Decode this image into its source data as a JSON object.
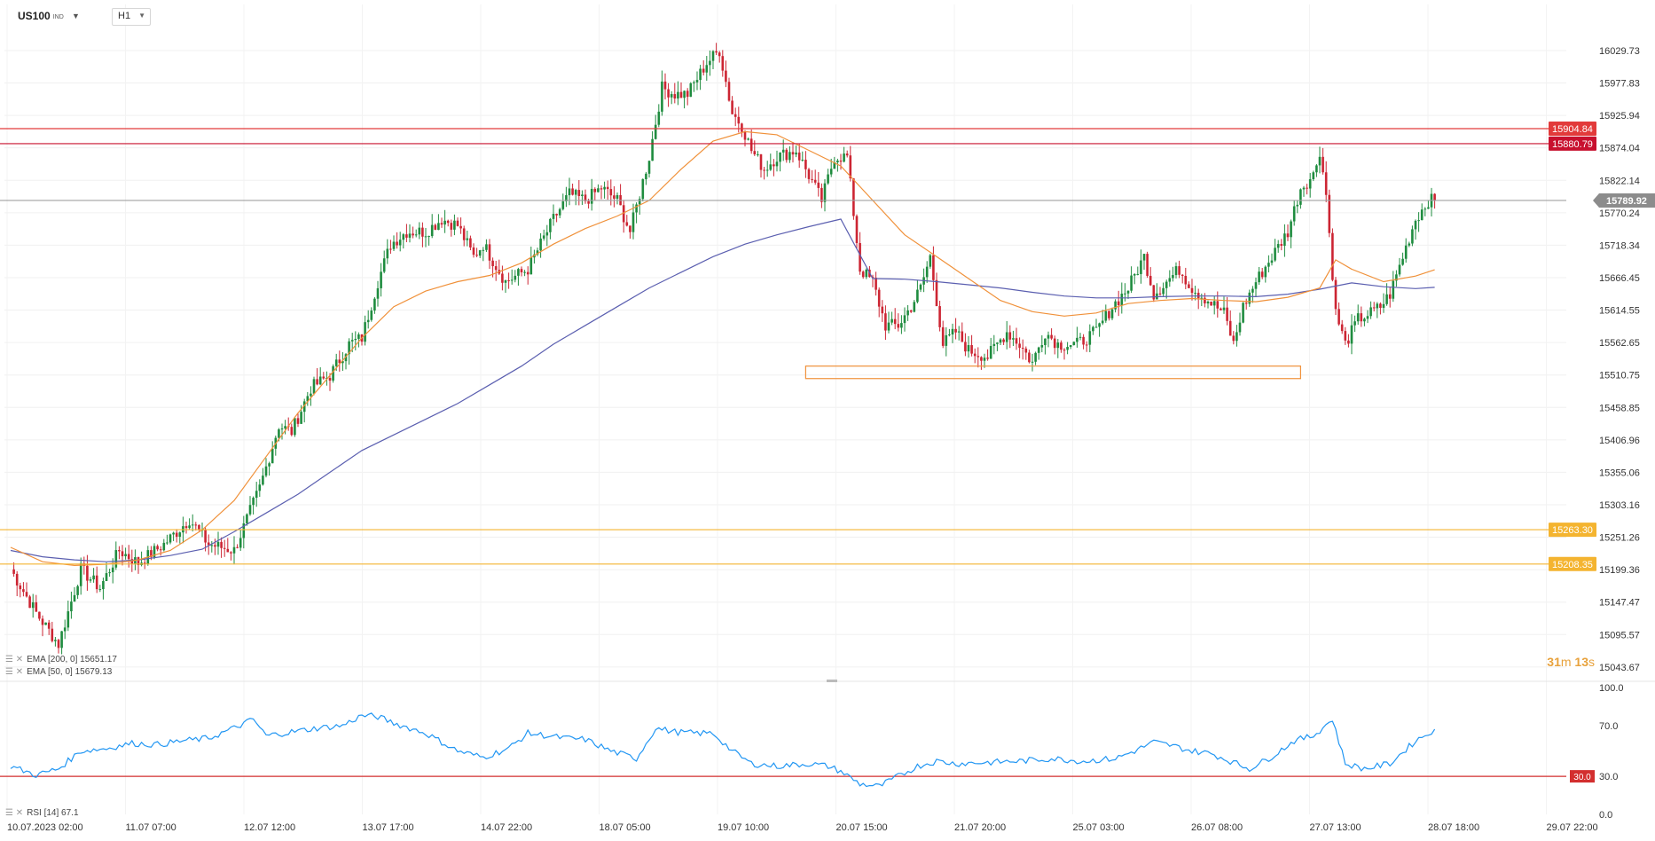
{
  "header": {
    "symbol": "US100",
    "symbol_sub": "IND",
    "timeframe": "H1"
  },
  "indicators": {
    "ema200": {
      "label": "EMA [200, 0]",
      "value": "15651.17",
      "color": "#5b5fb0"
    },
    "ema50": {
      "label": "EMA [50, 0]",
      "value": "15679.13",
      "color": "#f0913a"
    },
    "rsi": {
      "label": "RSI [14]",
      "value": "67.1",
      "color": "#2196f3"
    }
  },
  "countdown": {
    "minutes": "31",
    "m": "m",
    "seconds": "13",
    "s": "s"
  },
  "chart_data": {
    "type": "candlestick",
    "symbol": "US100",
    "timeframe": "H1",
    "y_range": [
      15025,
      16068
    ],
    "y_ticks": [
      "16029.73",
      "15977.83",
      "15925.94",
      "15874.04",
      "15822.14",
      "15770.24",
      "15718.34",
      "15666.45",
      "15614.55",
      "15562.65",
      "15510.75",
      "15458.85",
      "15406.96",
      "15355.06",
      "15303.16",
      "15251.26",
      "15199.36",
      "15147.47",
      "15095.57",
      "15043.67"
    ],
    "x_labels": [
      "10.07.2023  02:00",
      "11.07  07:00",
      "12.07  12:00",
      "13.07  17:00",
      "14.07  22:00",
      "18.07  05:00",
      "19.07  10:00",
      "20.07  15:00",
      "21.07  20:00",
      "25.07  03:00",
      "26.07  08:00",
      "27.07  13:00",
      "28.07  18:00",
      "29.07  22:00"
    ],
    "current_price": {
      "value": 15789.92,
      "label": "15789.92",
      "color": "#8c8c8c"
    },
    "horizontal_lines": [
      {
        "value": 15904.84,
        "label": "15904.84",
        "color": "#e23a3a"
      },
      {
        "value": 15880.79,
        "label": "15880.79",
        "color": "#c8102e"
      },
      {
        "value": 15263.3,
        "label": "15263.30",
        "color": "#f4b430"
      },
      {
        "value": 15208.35,
        "label": "15208.35",
        "color": "#f4b430"
      }
    ],
    "support_zone": {
      "start_label": "21.07",
      "end_label": "28.07",
      "top": 15525,
      "bottom": 15505,
      "color": "#f0913a"
    },
    "ohlc_path": [
      [
        0,
        15200
      ],
      [
        8,
        15130
      ],
      [
        15,
        15080
      ],
      [
        22,
        15200
      ],
      [
        28,
        15170
      ],
      [
        34,
        15230
      ],
      [
        40,
        15210
      ],
      [
        48,
        15240
      ],
      [
        56,
        15280
      ],
      [
        62,
        15240
      ],
      [
        70,
        15230
      ],
      [
        78,
        15330
      ],
      [
        84,
        15430
      ],
      [
        88,
        15420
      ],
      [
        94,
        15490
      ],
      [
        100,
        15510
      ],
      [
        106,
        15560
      ],
      [
        110,
        15570
      ],
      [
        115,
        15660
      ],
      [
        119,
        15720
      ],
      [
        124,
        15740
      ],
      [
        130,
        15740
      ],
      [
        135,
        15760
      ],
      [
        140,
        15750
      ],
      [
        145,
        15700
      ],
      [
        148,
        15720
      ],
      [
        155,
        15660
      ],
      [
        162,
        15680
      ],
      [
        166,
        15720
      ],
      [
        170,
        15760
      ],
      [
        175,
        15800
      ],
      [
        180,
        15790
      ],
      [
        185,
        15810
      ],
      [
        190,
        15790
      ],
      [
        194,
        15740
      ],
      [
        200,
        15860
      ],
      [
        204,
        15970
      ],
      [
        208,
        15960
      ],
      [
        212,
        15960
      ],
      [
        218,
        16010
      ],
      [
        222,
        16030
      ],
      [
        226,
        15930
      ],
      [
        229,
        15910
      ],
      [
        232,
        15870
      ],
      [
        236,
        15840
      ],
      [
        240,
        15860
      ],
      [
        246,
        15870
      ],
      [
        250,
        15830
      ],
      [
        254,
        15790
      ],
      [
        258,
        15860
      ],
      [
        262,
        15860
      ],
      [
        266,
        15680
      ],
      [
        270,
        15660
      ],
      [
        274,
        15590
      ],
      [
        278,
        15590
      ],
      [
        282,
        15620
      ],
      [
        285,
        15650
      ],
      [
        288,
        15700
      ],
      [
        292,
        15560
      ],
      [
        296,
        15580
      ],
      [
        300,
        15550
      ],
      [
        306,
        15540
      ],
      [
        312,
        15580
      ],
      [
        316,
        15560
      ],
      [
        320,
        15530
      ],
      [
        324,
        15580
      ],
      [
        328,
        15560
      ],
      [
        334,
        15560
      ],
      [
        340,
        15580
      ],
      [
        345,
        15620
      ],
      [
        350,
        15650
      ],
      [
        355,
        15700
      ],
      [
        358,
        15640
      ],
      [
        362,
        15660
      ],
      [
        366,
        15680
      ],
      [
        370,
        15650
      ],
      [
        375,
        15630
      ],
      [
        380,
        15610
      ],
      [
        383,
        15560
      ],
      [
        386,
        15620
      ],
      [
        390,
        15660
      ],
      [
        395,
        15700
      ],
      [
        400,
        15740
      ],
      [
        404,
        15810
      ],
      [
        408,
        15830
      ],
      [
        410,
        15870
      ],
      [
        412,
        15800
      ],
      [
        415,
        15610
      ],
      [
        418,
        15560
      ],
      [
        422,
        15600
      ],
      [
        426,
        15610
      ],
      [
        429,
        15620
      ],
      [
        432,
        15640
      ],
      [
        436,
        15700
      ],
      [
        440,
        15760
      ],
      [
        444,
        15789.92
      ]
    ],
    "ema50_path": [
      [
        0,
        15235
      ],
      [
        10,
        15212
      ],
      [
        20,
        15206
      ],
      [
        30,
        15208
      ],
      [
        40,
        15215
      ],
      [
        50,
        15230
      ],
      [
        60,
        15263
      ],
      [
        70,
        15310
      ],
      [
        80,
        15380
      ],
      [
        90,
        15450
      ],
      [
        100,
        15510
      ],
      [
        110,
        15570
      ],
      [
        120,
        15620
      ],
      [
        130,
        15645
      ],
      [
        140,
        15660
      ],
      [
        150,
        15670
      ],
      [
        160,
        15690
      ],
      [
        170,
        15720
      ],
      [
        180,
        15745
      ],
      [
        190,
        15765
      ],
      [
        200,
        15790
      ],
      [
        210,
        15840
      ],
      [
        220,
        15885
      ],
      [
        230,
        15900
      ],
      [
        240,
        15895
      ],
      [
        250,
        15870
      ],
      [
        260,
        15845
      ],
      [
        270,
        15790
      ],
      [
        280,
        15735
      ],
      [
        290,
        15700
      ],
      [
        300,
        15665
      ],
      [
        310,
        15630
      ],
      [
        320,
        15612
      ],
      [
        330,
        15605
      ],
      [
        340,
        15610
      ],
      [
        350,
        15625
      ],
      [
        360,
        15630
      ],
      [
        370,
        15633
      ],
      [
        380,
        15630
      ],
      [
        390,
        15628
      ],
      [
        400,
        15635
      ],
      [
        410,
        15650
      ],
      [
        415,
        15695
      ],
      [
        420,
        15680
      ],
      [
        430,
        15660
      ],
      [
        440,
        15669
      ],
      [
        446,
        15679
      ]
    ],
    "ema200_path": [
      [
        0,
        15230
      ],
      [
        10,
        15220
      ],
      [
        20,
        15215
      ],
      [
        30,
        15212
      ],
      [
        40,
        15215
      ],
      [
        50,
        15222
      ],
      [
        60,
        15232
      ],
      [
        70,
        15260
      ],
      [
        80,
        15290
      ],
      [
        90,
        15320
      ],
      [
        100,
        15355
      ],
      [
        110,
        15390
      ],
      [
        120,
        15415
      ],
      [
        130,
        15440
      ],
      [
        140,
        15465
      ],
      [
        150,
        15495
      ],
      [
        160,
        15525
      ],
      [
        170,
        15560
      ],
      [
        180,
        15590
      ],
      [
        190,
        15620
      ],
      [
        200,
        15650
      ],
      [
        210,
        15675
      ],
      [
        220,
        15700
      ],
      [
        230,
        15720
      ],
      [
        240,
        15735
      ],
      [
        250,
        15748
      ],
      [
        260,
        15760
      ],
      [
        270,
        15665
      ],
      [
        280,
        15664
      ],
      [
        290,
        15660
      ],
      [
        300,
        15655
      ],
      [
        310,
        15650
      ],
      [
        320,
        15643
      ],
      [
        330,
        15637
      ],
      [
        340,
        15634
      ],
      [
        350,
        15634
      ],
      [
        360,
        15636
      ],
      [
        370,
        15637
      ],
      [
        380,
        15637
      ],
      [
        390,
        15636
      ],
      [
        400,
        15640
      ],
      [
        410,
        15648
      ],
      [
        420,
        15658
      ],
      [
        430,
        15652
      ],
      [
        440,
        15649
      ],
      [
        446,
        15651
      ]
    ],
    "rsi": {
      "y_range": [
        0,
        100
      ],
      "y_ticks": [
        "100.0",
        "70.0",
        "30.0",
        "0.0"
      ],
      "level": {
        "value": 30.0,
        "label": "30.0",
        "color": "#d32f2f"
      },
      "values": [
        [
          0,
          38
        ],
        [
          8,
          31
        ],
        [
          15,
          36
        ],
        [
          22,
          50
        ],
        [
          30,
          52
        ],
        [
          38,
          56
        ],
        [
          46,
          55
        ],
        [
          54,
          58
        ],
        [
          62,
          60
        ],
        [
          70,
          68
        ],
        [
          76,
          75
        ],
        [
          80,
          62
        ],
        [
          88,
          65
        ],
        [
          96,
          68
        ],
        [
          104,
          70
        ],
        [
          110,
          78
        ],
        [
          115,
          77
        ],
        [
          120,
          72
        ],
        [
          130,
          64
        ],
        [
          140,
          50
        ],
        [
          148,
          45
        ],
        [
          156,
          52
        ],
        [
          162,
          64
        ],
        [
          168,
          62
        ],
        [
          174,
          60
        ],
        [
          180,
          59
        ],
        [
          188,
          50
        ],
        [
          196,
          44
        ],
        [
          202,
          68
        ],
        [
          208,
          65
        ],
        [
          214,
          64
        ],
        [
          220,
          64
        ],
        [
          226,
          50
        ],
        [
          232,
          40
        ],
        [
          240,
          38
        ],
        [
          250,
          40
        ],
        [
          256,
          38
        ],
        [
          260,
          34
        ],
        [
          266,
          24
        ],
        [
          272,
          22
        ],
        [
          278,
          30
        ],
        [
          284,
          38
        ],
        [
          290,
          42
        ],
        [
          296,
          40
        ],
        [
          306,
          41
        ],
        [
          316,
          42
        ],
        [
          326,
          44
        ],
        [
          336,
          42
        ],
        [
          346,
          44
        ],
        [
          352,
          50
        ],
        [
          358,
          57
        ],
        [
          364,
          54
        ],
        [
          370,
          50
        ],
        [
          376,
          48
        ],
        [
          382,
          42
        ],
        [
          388,
          36
        ],
        [
          394,
          44
        ],
        [
          402,
          58
        ],
        [
          408,
          62
        ],
        [
          414,
          75
        ],
        [
          418,
          40
        ],
        [
          424,
          36
        ],
        [
          432,
          40
        ],
        [
          440,
          58
        ],
        [
          446,
          67.1
        ]
      ]
    }
  }
}
